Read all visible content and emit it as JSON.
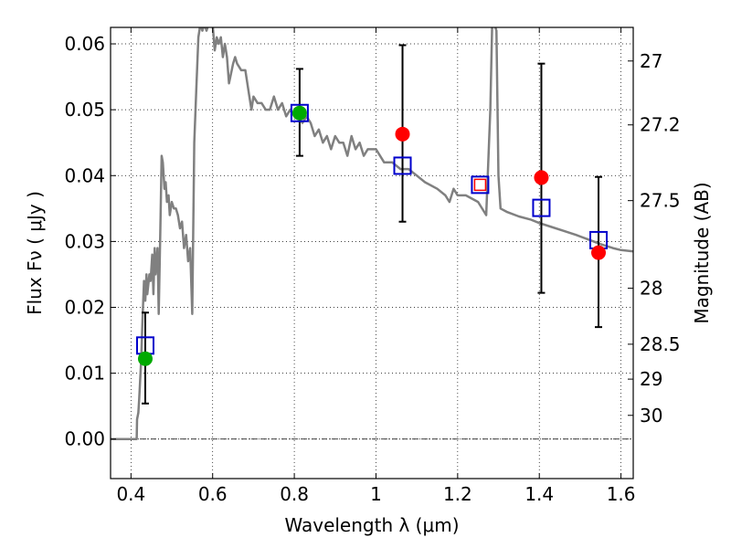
{
  "chart_data": {
    "type": "scatter",
    "xlabel": "Wavelength  λ (μm)",
    "ylabel": "Flux  Fν  ( μJy )",
    "y2label": "Magnitude (AB)",
    "xlim": [
      0.35,
      1.63
    ],
    "ylim": [
      -0.006,
      0.0625
    ],
    "x_ticks": [
      0.4,
      0.6,
      0.8,
      1.0,
      1.2,
      1.4,
      1.6
    ],
    "x_tick_labels": [
      "0.4",
      "0.6",
      "0.8",
      "1",
      "1.2",
      "1.4",
      "1.6"
    ],
    "y_ticks": [
      0.0,
      0.01,
      0.02,
      0.03,
      0.04,
      0.05,
      0.06
    ],
    "y_tick_labels": [
      "0.00",
      "0.01",
      "0.02",
      "0.03",
      "0.04",
      "0.05",
      "0.06"
    ],
    "y2_ticks": [
      {
        "label": "27",
        "flux": 0.0574
      },
      {
        "label": "27.2",
        "flux": 0.0477
      },
      {
        "label": "27.5",
        "flux": 0.0362
      },
      {
        "label": "28",
        "flux": 0.0229
      },
      {
        "label": "28.5",
        "flux": 0.0144
      },
      {
        "label": "29",
        "flux": 0.0091
      },
      {
        "label": "30",
        "flux": 0.0036
      }
    ],
    "grid": true,
    "series": [
      {
        "kind": "spectrum",
        "color": "#808080",
        "points": [
          [
            0.35,
            0.0
          ],
          [
            0.39,
            0.0
          ],
          [
            0.414,
            0.0
          ],
          [
            0.415,
            0.003
          ],
          [
            0.418,
            0.004
          ],
          [
            0.42,
            0.006
          ],
          [
            0.425,
            0.012
          ],
          [
            0.428,
            0.018
          ],
          [
            0.432,
            0.024
          ],
          [
            0.435,
            0.021
          ],
          [
            0.438,
            0.025
          ],
          [
            0.44,
            0.022
          ],
          [
            0.445,
            0.025
          ],
          [
            0.448,
            0.024
          ],
          [
            0.452,
            0.028
          ],
          [
            0.455,
            0.022
          ],
          [
            0.458,
            0.029
          ],
          [
            0.46,
            0.025
          ],
          [
            0.465,
            0.029
          ],
          [
            0.468,
            0.019
          ],
          [
            0.472,
            0.032
          ],
          [
            0.475,
            0.043
          ],
          [
            0.478,
            0.042
          ],
          [
            0.482,
            0.038
          ],
          [
            0.485,
            0.039
          ],
          [
            0.488,
            0.036
          ],
          [
            0.492,
            0.037
          ],
          [
            0.495,
            0.034
          ],
          [
            0.5,
            0.036
          ],
          [
            0.505,
            0.035
          ],
          [
            0.51,
            0.035
          ],
          [
            0.515,
            0.034
          ],
          [
            0.52,
            0.032
          ],
          [
            0.525,
            0.033
          ],
          [
            0.53,
            0.029
          ],
          [
            0.535,
            0.031
          ],
          [
            0.54,
            0.027
          ],
          [
            0.545,
            0.029
          ],
          [
            0.55,
            0.019
          ],
          [
            0.555,
            0.045
          ],
          [
            0.56,
            0.053
          ],
          [
            0.565,
            0.061
          ],
          [
            0.57,
            0.063
          ],
          [
            0.575,
            0.062
          ],
          [
            0.58,
            0.063
          ],
          [
            0.585,
            0.062
          ],
          [
            0.59,
            0.063
          ],
          [
            0.6,
            0.063
          ],
          [
            0.605,
            0.059
          ],
          [
            0.61,
            0.061
          ],
          [
            0.615,
            0.06
          ],
          [
            0.62,
            0.061
          ],
          [
            0.625,
            0.058
          ],
          [
            0.63,
            0.06
          ],
          [
            0.635,
            0.058
          ],
          [
            0.64,
            0.054
          ],
          [
            0.65,
            0.057
          ],
          [
            0.655,
            0.058
          ],
          [
            0.66,
            0.057
          ],
          [
            0.67,
            0.056
          ],
          [
            0.68,
            0.056
          ],
          [
            0.69,
            0.052
          ],
          [
            0.695,
            0.05
          ],
          [
            0.7,
            0.052
          ],
          [
            0.71,
            0.051
          ],
          [
            0.72,
            0.051
          ],
          [
            0.73,
            0.05
          ],
          [
            0.74,
            0.05
          ],
          [
            0.75,
            0.052
          ],
          [
            0.76,
            0.05
          ],
          [
            0.77,
            0.051
          ],
          [
            0.78,
            0.049
          ],
          [
            0.79,
            0.05
          ],
          [
            0.8,
            0.049
          ],
          [
            0.81,
            0.049
          ],
          [
            0.82,
            0.048
          ],
          [
            0.83,
            0.049
          ],
          [
            0.84,
            0.048
          ],
          [
            0.85,
            0.046
          ],
          [
            0.86,
            0.047
          ],
          [
            0.87,
            0.045
          ],
          [
            0.88,
            0.046
          ],
          [
            0.89,
            0.044
          ],
          [
            0.9,
            0.046
          ],
          [
            0.91,
            0.045
          ],
          [
            0.92,
            0.045
          ],
          [
            0.93,
            0.043
          ],
          [
            0.94,
            0.046
          ],
          [
            0.95,
            0.044
          ],
          [
            0.96,
            0.045
          ],
          [
            0.97,
            0.043
          ],
          [
            0.98,
            0.044
          ],
          [
            0.99,
            0.044
          ],
          [
            1.0,
            0.044
          ],
          [
            1.02,
            0.042
          ],
          [
            1.04,
            0.042
          ],
          [
            1.06,
            0.041
          ],
          [
            1.08,
            0.041
          ],
          [
            1.1,
            0.04
          ],
          [
            1.12,
            0.039
          ],
          [
            1.15,
            0.038
          ],
          [
            1.17,
            0.037
          ],
          [
            1.18,
            0.036
          ],
          [
            1.19,
            0.038
          ],
          [
            1.2,
            0.037
          ],
          [
            1.22,
            0.037
          ],
          [
            1.25,
            0.036
          ],
          [
            1.27,
            0.034
          ],
          [
            1.28,
            0.05
          ],
          [
            1.285,
            0.064
          ],
          [
            1.295,
            0.062
          ],
          [
            1.3,
            0.04
          ],
          [
            1.305,
            0.035
          ],
          [
            1.32,
            0.0345
          ],
          [
            1.35,
            0.0338
          ],
          [
            1.38,
            0.0333
          ],
          [
            1.4,
            0.0328
          ],
          [
            1.43,
            0.0322
          ],
          [
            1.46,
            0.0316
          ],
          [
            1.49,
            0.031
          ],
          [
            1.52,
            0.0303
          ],
          [
            1.55,
            0.0296
          ],
          [
            1.58,
            0.029
          ],
          [
            1.6,
            0.0287
          ],
          [
            1.63,
            0.0285
          ]
        ]
      },
      {
        "kind": "model_squares",
        "color": "#0000cc",
        "points": [
          [
            0.435,
            0.0142
          ],
          [
            0.813,
            0.0495
          ],
          [
            1.065,
            0.0415
          ],
          [
            1.255,
            0.0386
          ],
          [
            1.405,
            0.0351
          ],
          [
            1.545,
            0.0302
          ]
        ]
      },
      {
        "kind": "detections",
        "color": "#00aa00",
        "points": [
          [
            0.435,
            0.0122
          ],
          [
            0.813,
            0.0495
          ]
        ]
      },
      {
        "kind": "measurements",
        "color": "#ff0000",
        "points": [
          [
            1.065,
            0.0463
          ],
          [
            1.255,
            0.0386
          ],
          [
            1.405,
            0.0397
          ],
          [
            1.545,
            0.0283
          ]
        ]
      }
    ],
    "error_bars": [
      {
        "x": 0.435,
        "low": 0.0054,
        "high": 0.0192
      },
      {
        "x": 0.813,
        "low": 0.043,
        "high": 0.0562
      },
      {
        "x": 1.065,
        "low": 0.033,
        "high": 0.0598
      },
      {
        "x": 1.405,
        "low": 0.0222,
        "high": 0.057
      },
      {
        "x": 1.545,
        "low": 0.017,
        "high": 0.0398
      }
    ],
    "zero_line": 0.0
  }
}
